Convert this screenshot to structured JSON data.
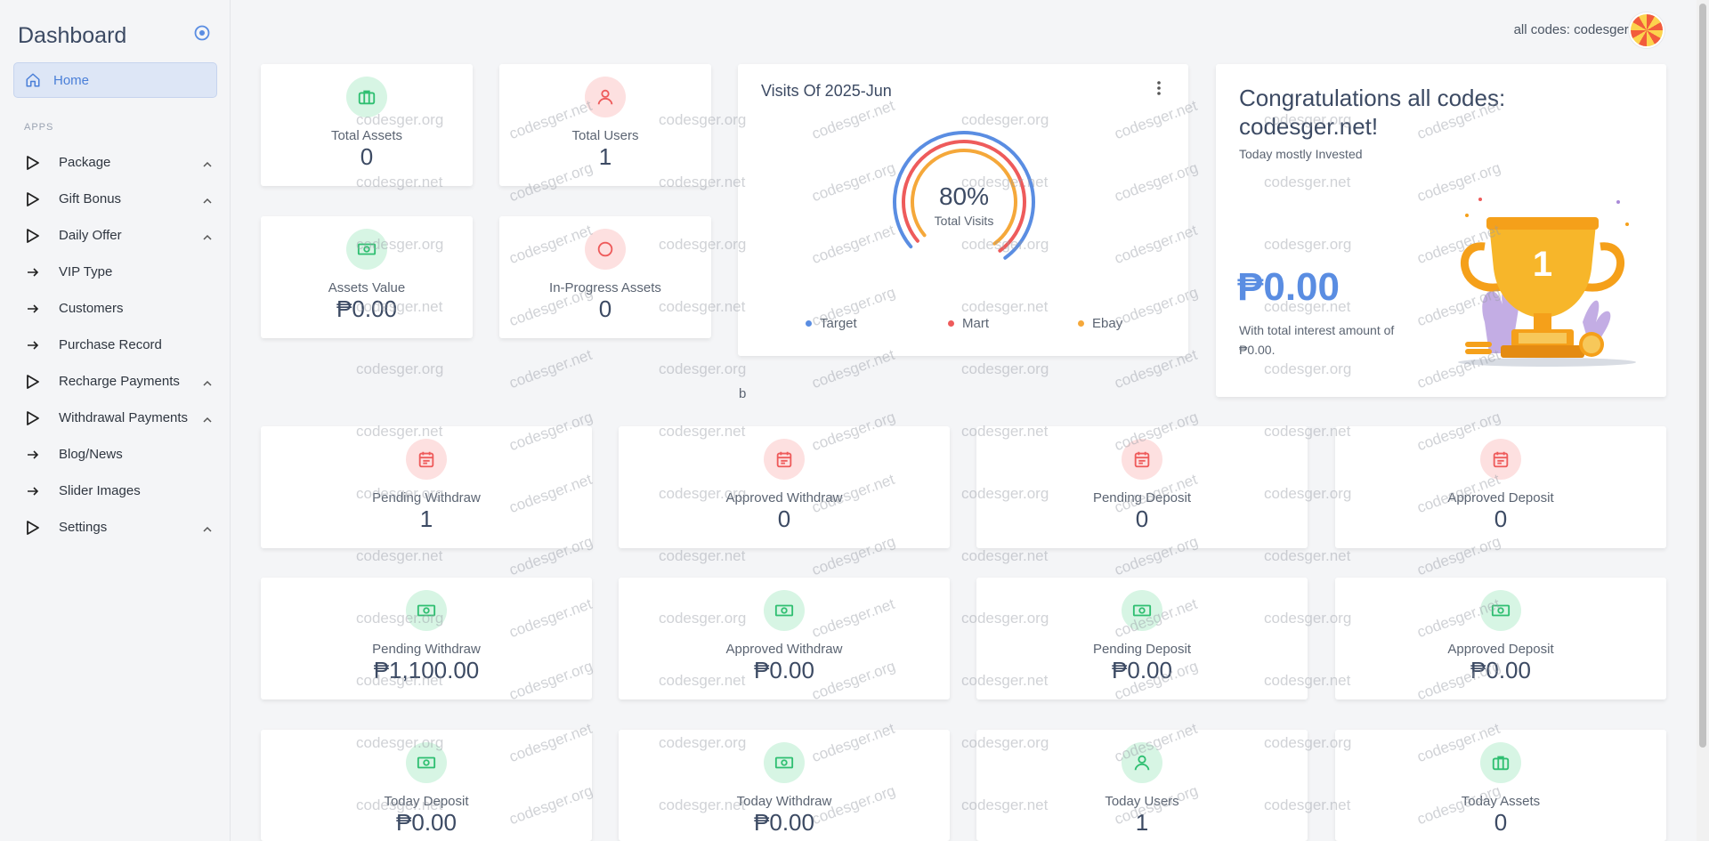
{
  "sidebar": {
    "title": "Dashboard",
    "home_label": "Home",
    "section_label": "APPS",
    "items": [
      {
        "label": "Package",
        "icon": "play-triangle-icon",
        "expandable": true
      },
      {
        "label": "Gift Bonus",
        "icon": "play-triangle-icon",
        "expandable": true
      },
      {
        "label": "Daily Offer",
        "icon": "play-triangle-icon",
        "expandable": true
      },
      {
        "label": "VIP Type",
        "icon": "arrow-right-icon",
        "expandable": false
      },
      {
        "label": "Customers",
        "icon": "arrow-right-icon",
        "expandable": false
      },
      {
        "label": "Purchase Record",
        "icon": "arrow-right-icon",
        "expandable": false
      },
      {
        "label": "Recharge Payments",
        "icon": "play-triangle-icon",
        "expandable": true
      },
      {
        "label": "Withdrawal Payments",
        "icon": "play-triangle-icon",
        "expandable": true
      },
      {
        "label": "Blog/News",
        "icon": "arrow-right-icon",
        "expandable": false
      },
      {
        "label": "Slider Images",
        "icon": "arrow-right-icon",
        "expandable": false
      },
      {
        "label": "Settings",
        "icon": "play-triangle-icon",
        "expandable": true
      }
    ]
  },
  "topbar": {
    "user_label": "all codes: codesger.net"
  },
  "top_stats": [
    {
      "label": "Total Assets",
      "value": "0",
      "icon": "briefcase-icon",
      "tone": "green"
    },
    {
      "label": "Total Users",
      "value": "1",
      "icon": "user-icon",
      "tone": "red"
    },
    {
      "label": "Assets Value",
      "value": "₱0.00",
      "icon": "money-icon",
      "tone": "green"
    },
    {
      "label": "In-Progress Assets",
      "value": "0",
      "icon": "circle-icon",
      "tone": "red"
    }
  ],
  "visits": {
    "title": "Visits Of 2025-Jun",
    "center_value": "80%",
    "center_label": "Total Visits",
    "legend": [
      {
        "label": "Target",
        "color": "#5a8de2"
      },
      {
        "label": "Mart",
        "color": "#ee5b5b"
      },
      {
        "label": "Ebay",
        "color": "#f5a83a"
      }
    ],
    "chart_data": {
      "type": "radial-bar",
      "series": [
        {
          "name": "Target",
          "value": 80,
          "color": "#5a8de2"
        },
        {
          "name": "Mart",
          "value": 80,
          "color": "#ee5b5b"
        },
        {
          "name": "Ebay",
          "value": 80,
          "color": "#f5a83a"
        }
      ]
    }
  },
  "congrats": {
    "title": "Congratulations all codes: codesger.net!",
    "subtitle": "Today mostly Invested",
    "amount": "₱0.00",
    "note": "With total interest amount of ₱0.00.",
    "trophy_number": "1"
  },
  "stray_text": "b",
  "grid_stats": [
    {
      "label": "Pending Withdraw",
      "value": "1",
      "icon": "calendar-icon",
      "tone": "red"
    },
    {
      "label": "Approved Withdraw",
      "value": "0",
      "icon": "calendar-icon",
      "tone": "red"
    },
    {
      "label": "Pending Deposit",
      "value": "0",
      "icon": "calendar-icon",
      "tone": "red"
    },
    {
      "label": "Approved Deposit",
      "value": "0",
      "icon": "calendar-icon",
      "tone": "red"
    },
    {
      "label": "Pending Withdraw",
      "value": "₱1,100.00",
      "icon": "money-icon",
      "tone": "green"
    },
    {
      "label": "Approved Withdraw",
      "value": "₱0.00",
      "icon": "money-icon",
      "tone": "green"
    },
    {
      "label": "Pending Deposit",
      "value": "₱0.00",
      "icon": "money-icon",
      "tone": "green"
    },
    {
      "label": "Approved Deposit",
      "value": "₱0.00",
      "icon": "money-icon",
      "tone": "green"
    },
    {
      "label": "Today Deposit",
      "value": "₱0.00",
      "icon": "money-icon",
      "tone": "green"
    },
    {
      "label": "Today Withdraw",
      "value": "₱0.00",
      "icon": "money-icon",
      "tone": "green"
    },
    {
      "label": "Today Users",
      "value": "1",
      "icon": "user-icon",
      "tone": "green"
    },
    {
      "label": "Today Assets",
      "value": "0",
      "icon": "briefcase-icon",
      "tone": "green"
    }
  ],
  "watermarks": [
    "codesger.net",
    "codesger.org"
  ],
  "colors": {
    "accent": "#5a8de2",
    "green_icon": "#2fbf71",
    "red_icon": "#ee5b5b"
  }
}
